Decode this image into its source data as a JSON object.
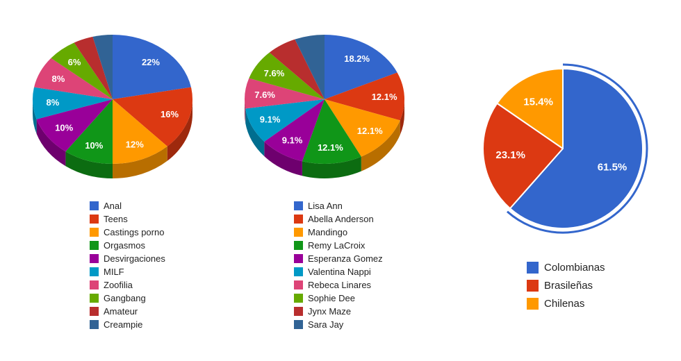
{
  "page": {
    "background_color": "#ffffff"
  },
  "chart_data": [
    {
      "type": "pie",
      "is3d": true,
      "title": "",
      "legend_position": "bottom",
      "labels": [
        "Anal",
        "Teens",
        "Castings porno",
        "Orgasmos",
        "Desvirgaciones",
        "MILF",
        "Zoofilia",
        "Gangbang",
        "Amateur",
        "Creampie"
      ],
      "values": [
        22,
        16,
        12,
        10,
        10,
        8,
        8,
        6,
        4,
        4
      ],
      "percent_labels": [
        "22%",
        "16%",
        "12%",
        "10%",
        "10%",
        "8%",
        "8%",
        "6%",
        null,
        null
      ],
      "colors": [
        "#3366CC",
        "#DC3912",
        "#FF9900",
        "#109618",
        "#990099",
        "#0099C6",
        "#DD4477",
        "#66AA00",
        "#B82E2E",
        "#316395"
      ],
      "label_text_color": "#ffffff"
    },
    {
      "type": "pie",
      "is3d": true,
      "title": "",
      "legend_position": "bottom",
      "labels": [
        "Lisa Ann",
        "Abella Anderson",
        "Mandingo",
        "Remy LaCroix",
        "Esperanza Gomez",
        "Valentina Nappi",
        "Rebeca Linares",
        "Sophie Dee",
        "Jynx Maze",
        "Sara Jay"
      ],
      "values": [
        18.2,
        12.1,
        12.1,
        12.1,
        9.1,
        9.1,
        7.6,
        7.6,
        6.05,
        6.05
      ],
      "percent_labels": [
        "18.2%",
        "12.1%",
        "12.1%",
        "12.1%",
        "9.1%",
        "9.1%",
        "7.6%",
        "7.6%",
        null,
        null
      ],
      "colors": [
        "#3366CC",
        "#DC3912",
        "#FF9900",
        "#109618",
        "#990099",
        "#0099C6",
        "#DD4477",
        "#66AA00",
        "#B82E2E",
        "#316395"
      ],
      "label_text_color": "#ffffff"
    },
    {
      "type": "pie",
      "is3d": false,
      "title": "",
      "legend_position": "bottom",
      "labels": [
        "Colombianas",
        "Brasileñas",
        "Chilenas"
      ],
      "values": [
        61.5,
        23.1,
        15.4
      ],
      "percent_labels": [
        "61.5%",
        "23.1%",
        "15.4%"
      ],
      "colors": [
        "#3366CC",
        "#DC3912",
        "#FF9900"
      ],
      "label_text_color": "#ffffff",
      "selected_slice": {
        "index": 0,
        "highlight_ring": true
      }
    }
  ]
}
